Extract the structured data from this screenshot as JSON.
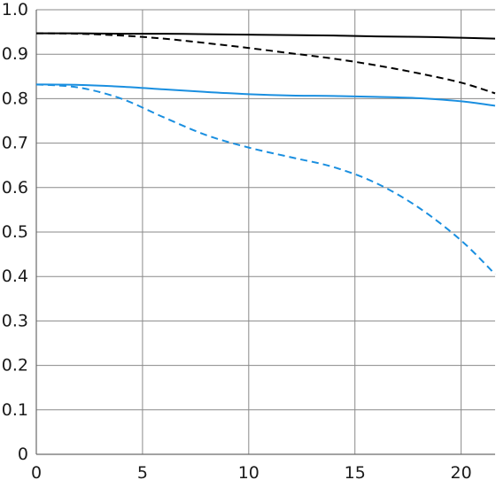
{
  "chart_data": {
    "type": "line",
    "title": "",
    "xlabel": "",
    "ylabel": "",
    "xlim": [
      0,
      21.6
    ],
    "ylim": [
      0,
      1.0
    ],
    "x_ticks": [
      0,
      5,
      10,
      15,
      20
    ],
    "x_tick_labels": [
      "0",
      "5",
      "10",
      "15",
      "20"
    ],
    "y_ticks": [
      0,
      0.1,
      0.2,
      0.3,
      0.4,
      0.5,
      0.6,
      0.7,
      0.8,
      0.9,
      1.0
    ],
    "y_tick_labels": [
      "0",
      "0.1",
      "0.2",
      "0.3",
      "0.4",
      "0.5",
      "0.6",
      "0.7",
      "0.8",
      "0.9",
      "1.0"
    ],
    "grid": true,
    "series": [
      {
        "color": "#000000",
        "line_style": "solid",
        "x": [
          0,
          2,
          4,
          6,
          8,
          10,
          12,
          14,
          16,
          18,
          20,
          21.6
        ],
        "y": [
          0.947,
          0.947,
          0.946,
          0.946,
          0.945,
          0.944,
          0.943,
          0.942,
          0.94,
          0.939,
          0.937,
          0.935
        ]
      },
      {
        "color": "#000000",
        "line_style": "dashed",
        "x": [
          0,
          2,
          4,
          6,
          8,
          10,
          12,
          14,
          16,
          18,
          20,
          21.6
        ],
        "y": [
          0.947,
          0.946,
          0.942,
          0.935,
          0.925,
          0.914,
          0.902,
          0.89,
          0.875,
          0.857,
          0.836,
          0.812
        ]
      },
      {
        "color": "#1a8fe0",
        "line_style": "solid",
        "x": [
          0,
          2,
          4,
          6,
          8,
          10,
          12,
          14,
          16,
          18,
          20,
          21.6
        ],
        "y": [
          0.832,
          0.831,
          0.827,
          0.821,
          0.815,
          0.81,
          0.807,
          0.806,
          0.804,
          0.801,
          0.794,
          0.784
        ]
      },
      {
        "color": "#1a8fe0",
        "line_style": "dashed",
        "x": [
          0,
          2,
          4,
          6,
          8,
          10,
          12,
          14,
          16,
          18,
          20,
          21.6
        ],
        "y": [
          0.832,
          0.825,
          0.8,
          0.758,
          0.718,
          0.69,
          0.668,
          0.646,
          0.61,
          0.555,
          0.481,
          0.405
        ]
      }
    ]
  }
}
